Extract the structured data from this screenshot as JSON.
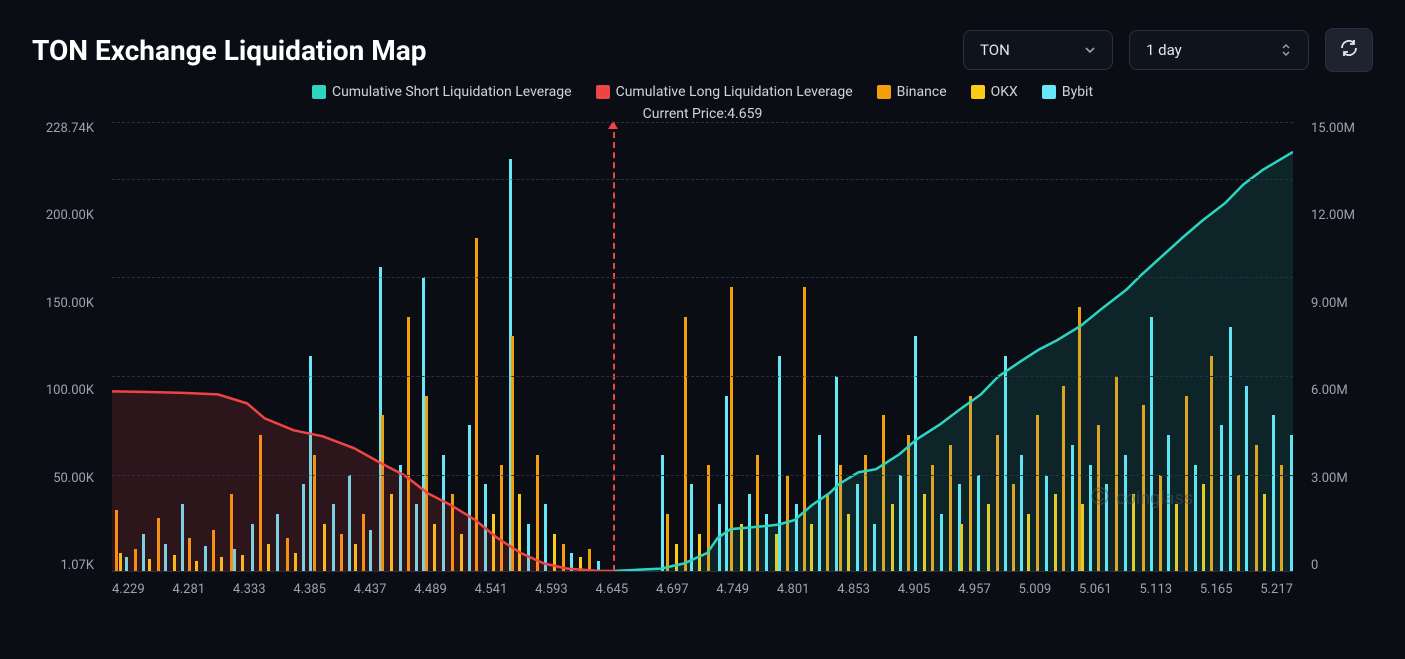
{
  "header": {
    "title": "TON Exchange Liquidation Map",
    "coin_select": {
      "value": "TON"
    },
    "range_select": {
      "value": "1 day"
    }
  },
  "legend": {
    "items": [
      {
        "label": "Cumulative Short Liquidation Leverage",
        "color": "#2dd4bf"
      },
      {
        "label": "Cumulative Long Liquidation Leverage",
        "color": "#ef4444"
      },
      {
        "label": "Binance",
        "color": "#f59e0b"
      },
      {
        "label": "OKX",
        "color": "#facc15"
      },
      {
        "label": "Bybit",
        "color": "#67e8f9"
      }
    ]
  },
  "current_price": {
    "label": "Current Price:",
    "value": "4.659"
  },
  "chart": {
    "background_color": "#0a0d14",
    "grid_color": "#2a3040",
    "text_color": "#9ca3af",
    "y_left": {
      "ticks": [
        "228.74K",
        "200.00K",
        "150.00K",
        "100.00K",
        "50.00K",
        "1.07K"
      ],
      "values": [
        228740,
        200000,
        150000,
        100000,
        50000,
        1070
      ],
      "min": 1070,
      "max": 228740
    },
    "y_right": {
      "ticks": [
        "15.00M",
        "12.00M",
        "9.00M",
        "6.00M",
        "3.00M",
        "0"
      ],
      "values": [
        15000000,
        12000000,
        9000000,
        6000000,
        3000000,
        0
      ],
      "min": 0,
      "max": 15000000
    },
    "x": {
      "min": 4.229,
      "max": 5.243,
      "ticks": [
        "4.229",
        "4.281",
        "4.333",
        "4.385",
        "4.437",
        "4.489",
        "4.541",
        "4.593",
        "4.645",
        "4.697",
        "4.749",
        "4.801",
        "4.853",
        "4.905",
        "4.957",
        "5.009",
        "5.061",
        "5.113",
        "5.165",
        "5.217"
      ]
    },
    "price_marker": {
      "x": 4.659,
      "color": "#ef4444"
    },
    "long_line": {
      "color": "#ef4444",
      "fill": "rgba(239,68,68,0.15)",
      "points": [
        [
          4.229,
          6000000
        ],
        [
          4.26,
          5980000
        ],
        [
          4.29,
          5950000
        ],
        [
          4.32,
          5900000
        ],
        [
          4.345,
          5600000
        ],
        [
          4.36,
          5100000
        ],
        [
          4.385,
          4700000
        ],
        [
          4.41,
          4500000
        ],
        [
          4.437,
          4100000
        ],
        [
          4.46,
          3600000
        ],
        [
          4.48,
          3200000
        ],
        [
          4.5,
          2600000
        ],
        [
          4.52,
          2200000
        ],
        [
          4.541,
          1700000
        ],
        [
          4.56,
          1100000
        ],
        [
          4.58,
          600000
        ],
        [
          4.6,
          250000
        ],
        [
          4.62,
          80000
        ],
        [
          4.645,
          10000
        ],
        [
          4.659,
          0
        ]
      ]
    },
    "short_line": {
      "color": "#2dd4bf",
      "fill": "rgba(45,212,191,0.12)",
      "points": [
        [
          4.659,
          0
        ],
        [
          4.68,
          40000
        ],
        [
          4.7,
          80000
        ],
        [
          4.72,
          250000
        ],
        [
          4.74,
          600000
        ],
        [
          4.749,
          1100000
        ],
        [
          4.76,
          1400000
        ],
        [
          4.775,
          1450000
        ],
        [
          4.79,
          1500000
        ],
        [
          4.801,
          1550000
        ],
        [
          4.815,
          1700000
        ],
        [
          4.83,
          2200000
        ],
        [
          4.845,
          2600000
        ],
        [
          4.853,
          2900000
        ],
        [
          4.87,
          3300000
        ],
        [
          4.885,
          3400000
        ],
        [
          4.905,
          3900000
        ],
        [
          4.92,
          4400000
        ],
        [
          4.94,
          4900000
        ],
        [
          4.957,
          5400000
        ],
        [
          4.975,
          5900000
        ],
        [
          4.99,
          6500000
        ],
        [
          5.009,
          7000000
        ],
        [
          5.025,
          7400000
        ],
        [
          5.04,
          7700000
        ],
        [
          5.061,
          8200000
        ],
        [
          5.08,
          8800000
        ],
        [
          5.1,
          9400000
        ],
        [
          5.113,
          9900000
        ],
        [
          5.13,
          10500000
        ],
        [
          5.15,
          11200000
        ],
        [
          5.165,
          11700000
        ],
        [
          5.185,
          12300000
        ],
        [
          5.2,
          12900000
        ],
        [
          5.217,
          13400000
        ],
        [
          5.243,
          14000000
        ]
      ]
    },
    "bars": [
      {
        "x": 4.232,
        "v": 32000,
        "c": "#f59e0b"
      },
      {
        "x": 4.235,
        "v": 10000,
        "c": "#facc15"
      },
      {
        "x": 4.24,
        "v": 8000,
        "c": "#67e8f9"
      },
      {
        "x": 4.248,
        "v": 12000,
        "c": "#f59e0b"
      },
      {
        "x": 4.255,
        "v": 20000,
        "c": "#67e8f9"
      },
      {
        "x": 4.26,
        "v": 7000,
        "c": "#facc15"
      },
      {
        "x": 4.268,
        "v": 28000,
        "c": "#f59e0b"
      },
      {
        "x": 4.274,
        "v": 15000,
        "c": "#67e8f9"
      },
      {
        "x": 4.281,
        "v": 9000,
        "c": "#facc15"
      },
      {
        "x": 4.288,
        "v": 35000,
        "c": "#67e8f9"
      },
      {
        "x": 4.294,
        "v": 18000,
        "c": "#f59e0b"
      },
      {
        "x": 4.3,
        "v": 6000,
        "c": "#facc15"
      },
      {
        "x": 4.308,
        "v": 14000,
        "c": "#67e8f9"
      },
      {
        "x": 4.315,
        "v": 22000,
        "c": "#f59e0b"
      },
      {
        "x": 4.322,
        "v": 8000,
        "c": "#facc15"
      },
      {
        "x": 4.33,
        "v": 40000,
        "c": "#f59e0b"
      },
      {
        "x": 4.333,
        "v": 12000,
        "c": "#67e8f9"
      },
      {
        "x": 4.34,
        "v": 9000,
        "c": "#facc15"
      },
      {
        "x": 4.348,
        "v": 25000,
        "c": "#67e8f9"
      },
      {
        "x": 4.355,
        "v": 70000,
        "c": "#f59e0b"
      },
      {
        "x": 4.362,
        "v": 15000,
        "c": "#facc15"
      },
      {
        "x": 4.37,
        "v": 30000,
        "c": "#67e8f9"
      },
      {
        "x": 4.378,
        "v": 18000,
        "c": "#f59e0b"
      },
      {
        "x": 4.385,
        "v": 10000,
        "c": "#facc15"
      },
      {
        "x": 4.392,
        "v": 45000,
        "c": "#67e8f9"
      },
      {
        "x": 4.398,
        "v": 110000,
        "c": "#67e8f9"
      },
      {
        "x": 4.402,
        "v": 60000,
        "c": "#f59e0b"
      },
      {
        "x": 4.41,
        "v": 25000,
        "c": "#facc15"
      },
      {
        "x": 4.418,
        "v": 35000,
        "c": "#67e8f9"
      },
      {
        "x": 4.425,
        "v": 20000,
        "c": "#f59e0b"
      },
      {
        "x": 4.432,
        "v": 50000,
        "c": "#67e8f9"
      },
      {
        "x": 4.437,
        "v": 15000,
        "c": "#facc15"
      },
      {
        "x": 4.444,
        "v": 30000,
        "c": "#f59e0b"
      },
      {
        "x": 4.45,
        "v": 22000,
        "c": "#67e8f9"
      },
      {
        "x": 4.458,
        "v": 155000,
        "c": "#67e8f9"
      },
      {
        "x": 4.46,
        "v": 80000,
        "c": "#f59e0b"
      },
      {
        "x": 4.468,
        "v": 40000,
        "c": "#facc15"
      },
      {
        "x": 4.475,
        "v": 55000,
        "c": "#67e8f9"
      },
      {
        "x": 4.482,
        "v": 130000,
        "c": "#f59e0b"
      },
      {
        "x": 4.489,
        "v": 35000,
        "c": "#67e8f9"
      },
      {
        "x": 4.495,
        "v": 150000,
        "c": "#67e8f9"
      },
      {
        "x": 4.498,
        "v": 90000,
        "c": "#f59e0b"
      },
      {
        "x": 4.505,
        "v": 25000,
        "c": "#facc15"
      },
      {
        "x": 4.512,
        "v": 60000,
        "c": "#67e8f9"
      },
      {
        "x": 4.52,
        "v": 40000,
        "c": "#f59e0b"
      },
      {
        "x": 4.528,
        "v": 20000,
        "c": "#facc15"
      },
      {
        "x": 4.535,
        "v": 75000,
        "c": "#67e8f9"
      },
      {
        "x": 4.541,
        "v": 170000,
        "c": "#f59e0b"
      },
      {
        "x": 4.548,
        "v": 45000,
        "c": "#67e8f9"
      },
      {
        "x": 4.555,
        "v": 30000,
        "c": "#facc15"
      },
      {
        "x": 4.562,
        "v": 55000,
        "c": "#f59e0b"
      },
      {
        "x": 4.57,
        "v": 210000,
        "c": "#67e8f9"
      },
      {
        "x": 4.572,
        "v": 120000,
        "c": "#f59e0b"
      },
      {
        "x": 4.578,
        "v": 40000,
        "c": "#facc15"
      },
      {
        "x": 4.585,
        "v": 25000,
        "c": "#67e8f9"
      },
      {
        "x": 4.593,
        "v": 60000,
        "c": "#f59e0b"
      },
      {
        "x": 4.6,
        "v": 35000,
        "c": "#67e8f9"
      },
      {
        "x": 4.608,
        "v": 20000,
        "c": "#facc15"
      },
      {
        "x": 4.615,
        "v": 15000,
        "c": "#f59e0b"
      },
      {
        "x": 4.622,
        "v": 10000,
        "c": "#67e8f9"
      },
      {
        "x": 4.63,
        "v": 8000,
        "c": "#facc15"
      },
      {
        "x": 4.638,
        "v": 12000,
        "c": "#f59e0b"
      },
      {
        "x": 4.645,
        "v": 6000,
        "c": "#67e8f9"
      },
      {
        "x": 4.7,
        "v": 60000,
        "c": "#67e8f9"
      },
      {
        "x": 4.705,
        "v": 30000,
        "c": "#f59e0b"
      },
      {
        "x": 4.712,
        "v": 15000,
        "c": "#facc15"
      },
      {
        "x": 4.72,
        "v": 130000,
        "c": "#f59e0b"
      },
      {
        "x": 4.725,
        "v": 45000,
        "c": "#67e8f9"
      },
      {
        "x": 4.732,
        "v": 20000,
        "c": "#facc15"
      },
      {
        "x": 4.74,
        "v": 55000,
        "c": "#f59e0b"
      },
      {
        "x": 4.749,
        "v": 35000,
        "c": "#67e8f9"
      },
      {
        "x": 4.755,
        "v": 90000,
        "c": "#67e8f9"
      },
      {
        "x": 4.76,
        "v": 145000,
        "c": "#f59e0b"
      },
      {
        "x": 4.768,
        "v": 25000,
        "c": "#facc15"
      },
      {
        "x": 4.775,
        "v": 40000,
        "c": "#67e8f9"
      },
      {
        "x": 4.782,
        "v": 60000,
        "c": "#f59e0b"
      },
      {
        "x": 4.79,
        "v": 30000,
        "c": "#67e8f9"
      },
      {
        "x": 4.798,
        "v": 20000,
        "c": "#facc15"
      },
      {
        "x": 4.801,
        "v": 110000,
        "c": "#67e8f9"
      },
      {
        "x": 4.808,
        "v": 50000,
        "c": "#f59e0b"
      },
      {
        "x": 4.815,
        "v": 35000,
        "c": "#67e8f9"
      },
      {
        "x": 4.822,
        "v": 145000,
        "c": "#f59e0b"
      },
      {
        "x": 4.828,
        "v": 25000,
        "c": "#facc15"
      },
      {
        "x": 4.835,
        "v": 70000,
        "c": "#67e8f9"
      },
      {
        "x": 4.842,
        "v": 40000,
        "c": "#f59e0b"
      },
      {
        "x": 4.85,
        "v": 100000,
        "c": "#67e8f9"
      },
      {
        "x": 4.853,
        "v": 55000,
        "c": "#f59e0b"
      },
      {
        "x": 4.86,
        "v": 30000,
        "c": "#facc15"
      },
      {
        "x": 4.868,
        "v": 45000,
        "c": "#67e8f9"
      },
      {
        "x": 4.875,
        "v": 60000,
        "c": "#f59e0b"
      },
      {
        "x": 4.882,
        "v": 25000,
        "c": "#67e8f9"
      },
      {
        "x": 4.89,
        "v": 80000,
        "c": "#f59e0b"
      },
      {
        "x": 4.898,
        "v": 35000,
        "c": "#facc15"
      },
      {
        "x": 4.905,
        "v": 50000,
        "c": "#67e8f9"
      },
      {
        "x": 4.912,
        "v": 70000,
        "c": "#f59e0b"
      },
      {
        "x": 4.918,
        "v": 120000,
        "c": "#67e8f9"
      },
      {
        "x": 4.925,
        "v": 40000,
        "c": "#facc15"
      },
      {
        "x": 4.932,
        "v": 55000,
        "c": "#f59e0b"
      },
      {
        "x": 4.94,
        "v": 30000,
        "c": "#67e8f9"
      },
      {
        "x": 4.948,
        "v": 65000,
        "c": "#f59e0b"
      },
      {
        "x": 4.955,
        "v": 45000,
        "c": "#67e8f9"
      },
      {
        "x": 4.957,
        "v": 25000,
        "c": "#facc15"
      },
      {
        "x": 4.965,
        "v": 90000,
        "c": "#f59e0b"
      },
      {
        "x": 4.972,
        "v": 50000,
        "c": "#67e8f9"
      },
      {
        "x": 4.98,
        "v": 35000,
        "c": "#facc15"
      },
      {
        "x": 4.988,
        "v": 70000,
        "c": "#f59e0b"
      },
      {
        "x": 4.995,
        "v": 110000,
        "c": "#67e8f9"
      },
      {
        "x": 5.002,
        "v": 45000,
        "c": "#f59e0b"
      },
      {
        "x": 5.009,
        "v": 60000,
        "c": "#67e8f9"
      },
      {
        "x": 5.015,
        "v": 30000,
        "c": "#facc15"
      },
      {
        "x": 5.022,
        "v": 80000,
        "c": "#f59e0b"
      },
      {
        "x": 5.03,
        "v": 50000,
        "c": "#67e8f9"
      },
      {
        "x": 5.038,
        "v": 40000,
        "c": "#facc15"
      },
      {
        "x": 5.045,
        "v": 95000,
        "c": "#f59e0b"
      },
      {
        "x": 5.052,
        "v": 65000,
        "c": "#67e8f9"
      },
      {
        "x": 5.058,
        "v": 135000,
        "c": "#f59e0b"
      },
      {
        "x": 5.061,
        "v": 35000,
        "c": "#facc15"
      },
      {
        "x": 5.068,
        "v": 55000,
        "c": "#67e8f9"
      },
      {
        "x": 5.075,
        "v": 75000,
        "c": "#f59e0b"
      },
      {
        "x": 5.082,
        "v": 45000,
        "c": "#67e8f9"
      },
      {
        "x": 5.09,
        "v": 100000,
        "c": "#f59e0b"
      },
      {
        "x": 5.098,
        "v": 60000,
        "c": "#67e8f9"
      },
      {
        "x": 5.105,
        "v": 40000,
        "c": "#facc15"
      },
      {
        "x": 5.113,
        "v": 85000,
        "c": "#f59e0b"
      },
      {
        "x": 5.12,
        "v": 130000,
        "c": "#67e8f9"
      },
      {
        "x": 5.128,
        "v": 50000,
        "c": "#f59e0b"
      },
      {
        "x": 5.135,
        "v": 70000,
        "c": "#67e8f9"
      },
      {
        "x": 5.142,
        "v": 35000,
        "c": "#facc15"
      },
      {
        "x": 5.15,
        "v": 90000,
        "c": "#f59e0b"
      },
      {
        "x": 5.158,
        "v": 55000,
        "c": "#67e8f9"
      },
      {
        "x": 5.165,
        "v": 45000,
        "c": "#facc15"
      },
      {
        "x": 5.172,
        "v": 110000,
        "c": "#f59e0b"
      },
      {
        "x": 5.18,
        "v": 75000,
        "c": "#67e8f9"
      },
      {
        "x": 5.188,
        "v": 125000,
        "c": "#67e8f9"
      },
      {
        "x": 5.195,
        "v": 50000,
        "c": "#f59e0b"
      },
      {
        "x": 5.202,
        "v": 95000,
        "c": "#67e8f9"
      },
      {
        "x": 5.21,
        "v": 65000,
        "c": "#f59e0b"
      },
      {
        "x": 5.217,
        "v": 40000,
        "c": "#facc15"
      },
      {
        "x": 5.225,
        "v": 80000,
        "c": "#67e8f9"
      },
      {
        "x": 5.232,
        "v": 55000,
        "c": "#f59e0b"
      },
      {
        "x": 5.24,
        "v": 70000,
        "c": "#67e8f9"
      }
    ]
  },
  "watermark": {
    "text": "coinglass"
  }
}
